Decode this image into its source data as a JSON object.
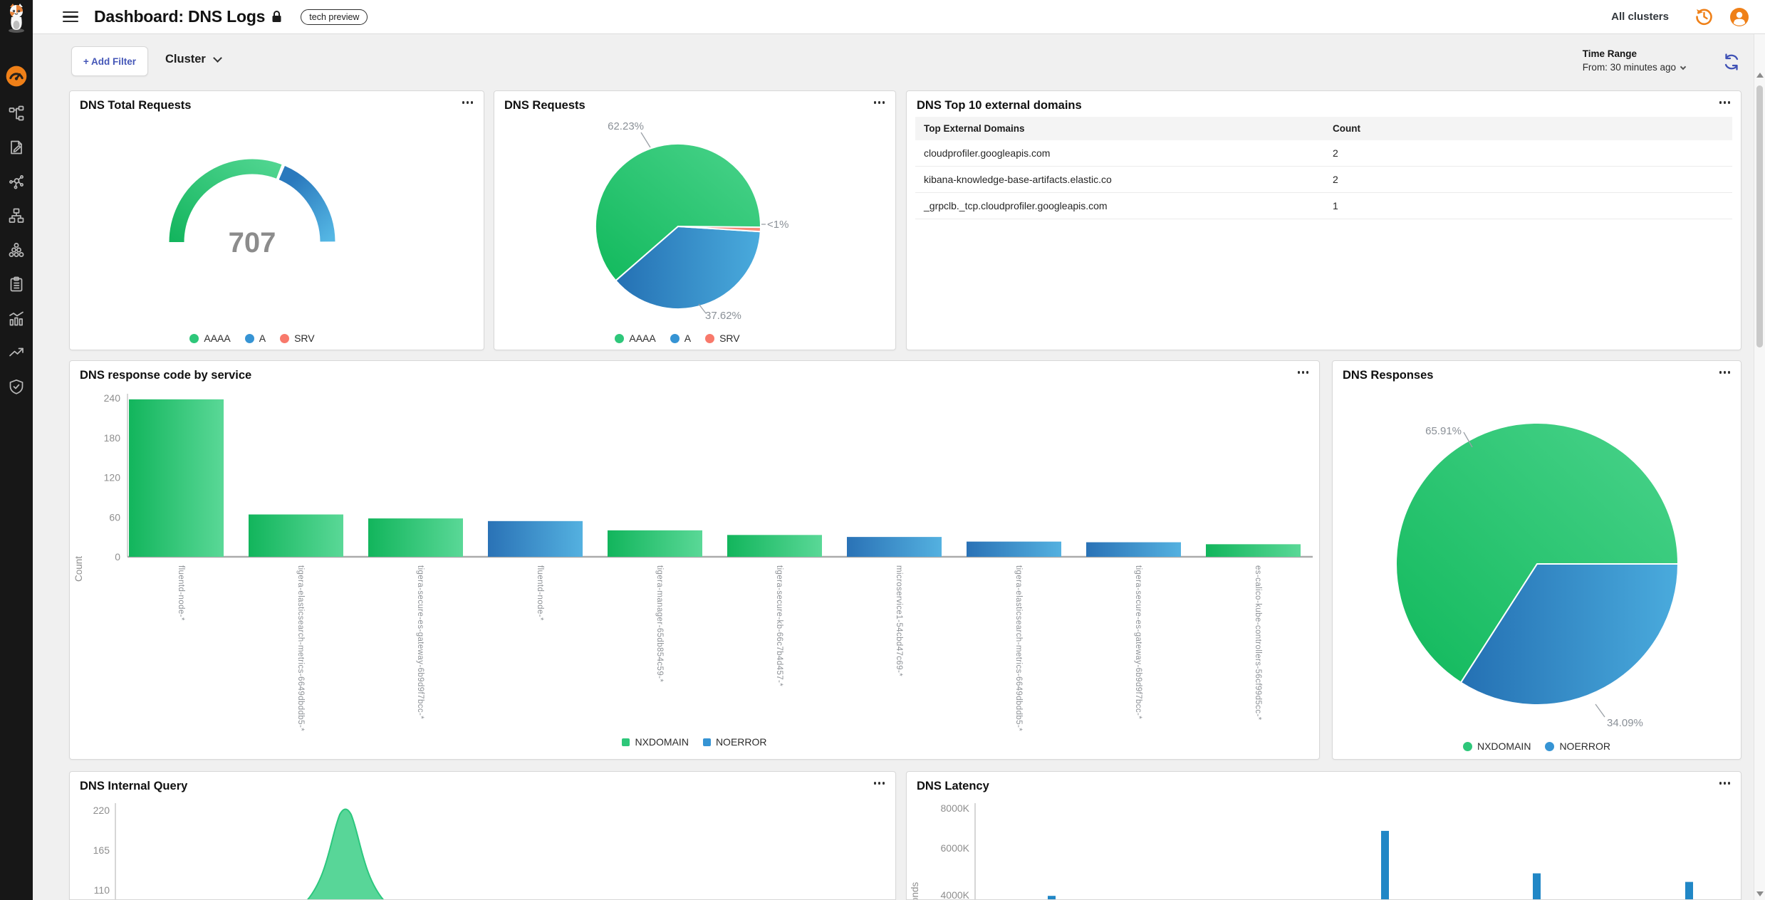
{
  "colors": {
    "green": "#1fc26c",
    "blue": "#3190d4",
    "salmon": "#f8796b",
    "orange": "#ef8018",
    "accent": "#3f51b5"
  },
  "header": {
    "title": "Dashboard: DNS Logs",
    "badge": "tech preview",
    "all_clusters": "All clusters",
    "icons": [
      "menu-icon",
      "lock-icon",
      "history-icon",
      "user-avatar-icon"
    ]
  },
  "toolbar": {
    "add_filter_label": "+ Add Filter",
    "cluster_label": "Cluster",
    "time_range_label": "Time Range",
    "time_range_value": "From: 30 minutes ago",
    "refresh_icon": "refresh-icon"
  },
  "sidebar": {
    "logo": "calico-cat-logo",
    "items": [
      {
        "name": "dashboards",
        "icon": "gauge-icon",
        "active": true
      },
      {
        "name": "topology",
        "icon": "topology-icon",
        "active": false
      },
      {
        "name": "policies",
        "icon": "file-pen-icon",
        "active": false
      },
      {
        "name": "service-graph",
        "icon": "share-graph-icon",
        "active": false
      },
      {
        "name": "network",
        "icon": "sitemap-icon",
        "active": false
      },
      {
        "name": "clusters",
        "icon": "cluster-nodes-icon",
        "active": false
      },
      {
        "name": "logs",
        "icon": "clipboard-list-icon",
        "active": false
      },
      {
        "name": "statistics",
        "icon": "bar-chart-line-icon",
        "active": false
      },
      {
        "name": "trends",
        "icon": "trending-up-icon",
        "active": false
      },
      {
        "name": "security",
        "icon": "shield-check-icon",
        "active": false
      }
    ]
  },
  "panels": {
    "total_requests": {
      "title": "DNS Total Requests",
      "value": "707",
      "gauge": {
        "segments": [
          {
            "key": "green",
            "pct": 62.23
          },
          {
            "key": "blue",
            "pct": 37.62
          }
        ]
      },
      "legend": [
        {
          "label": "AAAA",
          "color": "#2ec77a"
        },
        {
          "label": "A",
          "color": "#3694d4"
        },
        {
          "label": "SRV",
          "color": "#f8796b"
        }
      ]
    },
    "requests_pie": {
      "title": "DNS Requests",
      "slices": [
        {
          "label": "AAAA",
          "pct": 62.23,
          "display": "62.23%",
          "key": "green"
        },
        {
          "label": "A",
          "pct": 37.62,
          "display": "37.62%",
          "key": "blue"
        },
        {
          "label": "SRV",
          "pct": 0.15,
          "display": "<1%",
          "key": "salmon"
        }
      ],
      "legend": [
        {
          "label": "AAAA",
          "color": "#2ec77a"
        },
        {
          "label": "A",
          "color": "#3694d4"
        },
        {
          "label": "SRV",
          "color": "#f8796b"
        }
      ]
    },
    "top_domains": {
      "title": "DNS Top 10 external domains",
      "columns": [
        "Top External Domains",
        "Count"
      ],
      "rows": [
        [
          "cloudprofiler.googleapis.com",
          "2"
        ],
        [
          "kibana-knowledge-base-artifacts.elastic.co",
          "2"
        ],
        [
          "_grpclb._tcp.cloudprofiler.googleapis.com",
          "1"
        ]
      ]
    },
    "response_by_service": {
      "title": "DNS response code by service",
      "ylabel": "Count",
      "ymax": 240,
      "yticks": [
        "0",
        "60",
        "120",
        "180",
        "240"
      ],
      "bars": [
        {
          "label": "fluentd-node-*",
          "value": 238,
          "series": "NXDOMAIN"
        },
        {
          "label": "tigera-elasticsearch-metrics-6649dbddb5-*",
          "value": 64,
          "series": "NXDOMAIN"
        },
        {
          "label": "tigera-secure-es-gateway-6b9d9f7bcc-*",
          "value": 58,
          "series": "NXDOMAIN"
        },
        {
          "label": "fluentd-node-*",
          "value": 54,
          "series": "NOERROR"
        },
        {
          "label": "tigera-manager-65db854c59-*",
          "value": 40,
          "series": "NXDOMAIN"
        },
        {
          "label": "tigera-secure-kb-66c7b4d457-*",
          "value": 33,
          "series": "NXDOMAIN"
        },
        {
          "label": "microservice1-54cbd47c69-*",
          "value": 30,
          "series": "NOERROR"
        },
        {
          "label": "tigera-elasticsearch-metrics-6649dbddb5-*",
          "value": 23,
          "series": "NOERROR"
        },
        {
          "label": "tigera-secure-es-gateway-6b9d9f7bcc-*",
          "value": 22,
          "series": "NOERROR"
        },
        {
          "label": "es-calico-kube-controllers-56cf99d5cc-*",
          "value": 19,
          "series": "NXDOMAIN"
        }
      ],
      "legend": [
        {
          "label": "NXDOMAIN",
          "color": "#2ec77a"
        },
        {
          "label": "NOERROR",
          "color": "#3694d4"
        }
      ]
    },
    "responses_pie": {
      "title": "DNS Responses",
      "slices": [
        {
          "label": "NXDOMAIN",
          "pct": 65.91,
          "display": "65.91%",
          "key": "green"
        },
        {
          "label": "NOERROR",
          "pct": 34.09,
          "display": "34.09%",
          "key": "blue"
        }
      ],
      "legend": [
        {
          "label": "NXDOMAIN",
          "color": "#2ec77a"
        },
        {
          "label": "NOERROR",
          "color": "#3694d4"
        }
      ]
    },
    "internal_query": {
      "title": "DNS Internal Query",
      "yticks": [
        "220",
        "165",
        "110"
      ],
      "peak_value": 220
    },
    "latency": {
      "title": "DNS Latency",
      "ylabel": "Nanoseconds",
      "yticks": [
        "8000K",
        "6000K",
        "4000K"
      ],
      "bars_k": [
        3600,
        6860,
        4730,
        4300
      ]
    }
  }
}
